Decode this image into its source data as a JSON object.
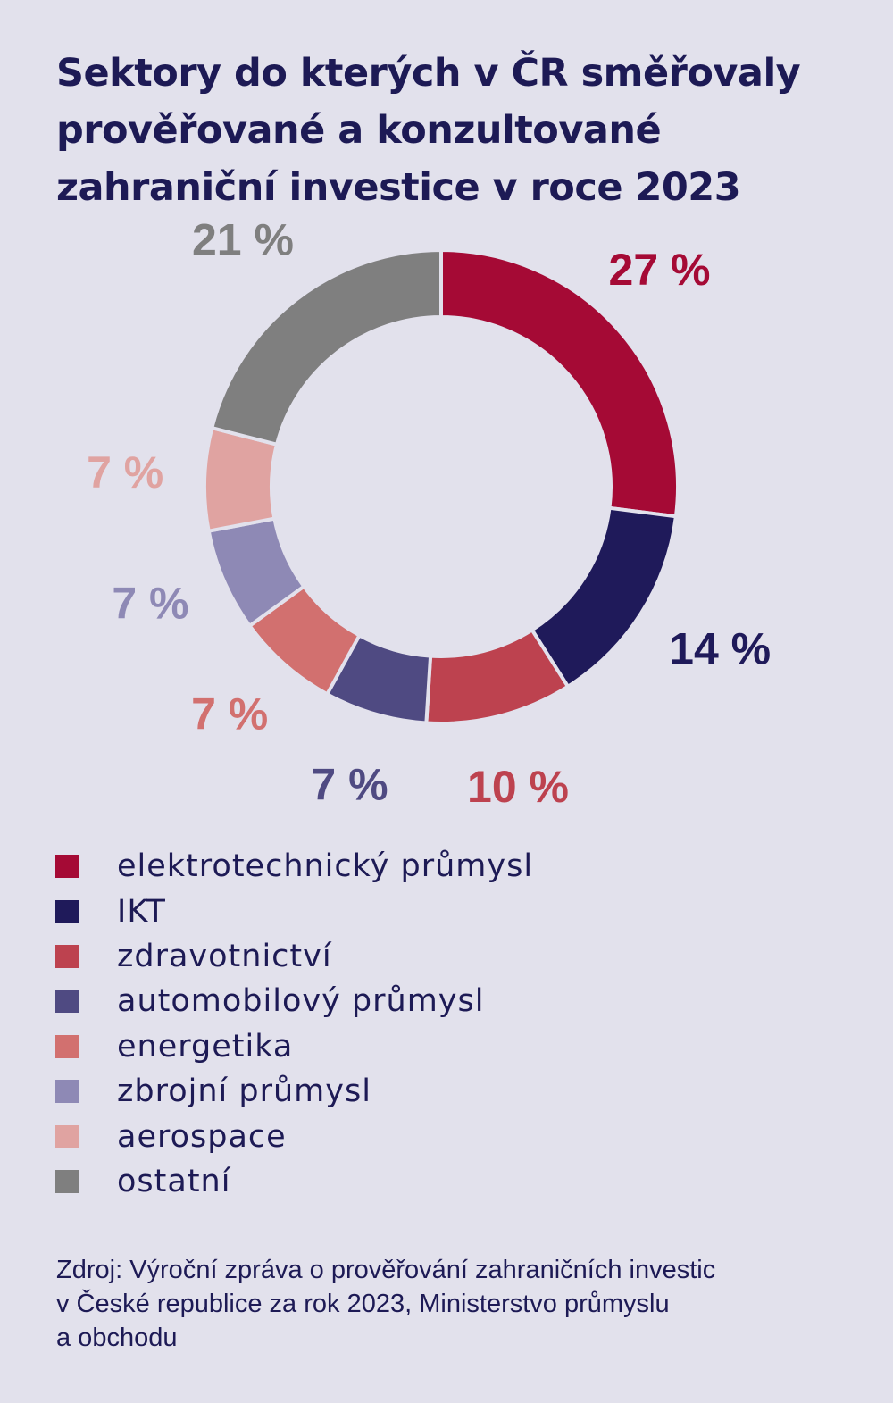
{
  "title_lines": [
    "Sektory do kterých v ČR směřovaly",
    "prověřované a konzultované",
    "zahraniční investice v roce 2023"
  ],
  "chart_data": {
    "type": "pie",
    "variant": "donut",
    "start": "top, clockwise",
    "series": [
      {
        "name": "elektrotechnický průmysl",
        "value": 27,
        "label": "27 %",
        "color": "#a50a35"
      },
      {
        "name": "IKT",
        "value": 14,
        "label": "14 %",
        "color": "#1f1a5a"
      },
      {
        "name": "zdravotnictví",
        "value": 10,
        "label": "10 %",
        "color": "#bd424f"
      },
      {
        "name": "automobilový průmysl",
        "value": 7,
        "label": "7 %",
        "color": "#4f4a82"
      },
      {
        "name": "energetika",
        "value": 7,
        "label": "7 %",
        "color": "#d2706f"
      },
      {
        "name": "zbrojní průmysl",
        "value": 7,
        "label": "7 %",
        "color": "#8e89b5"
      },
      {
        "name": "aerospace",
        "value": 7,
        "label": "7 %",
        "color": "#e0a3a1"
      },
      {
        "name": "ostatní",
        "value": 21,
        "label": "21 %",
        "color": "#7f7f7f"
      }
    ],
    "legend_position": "bottom-left"
  },
  "source_lines": [
    "Zdroj: Výroční zpráva o prověřování zahraničních investic",
    "v České republice za rok 2023, Ministerstvo průmyslu",
    "a obchodu"
  ]
}
